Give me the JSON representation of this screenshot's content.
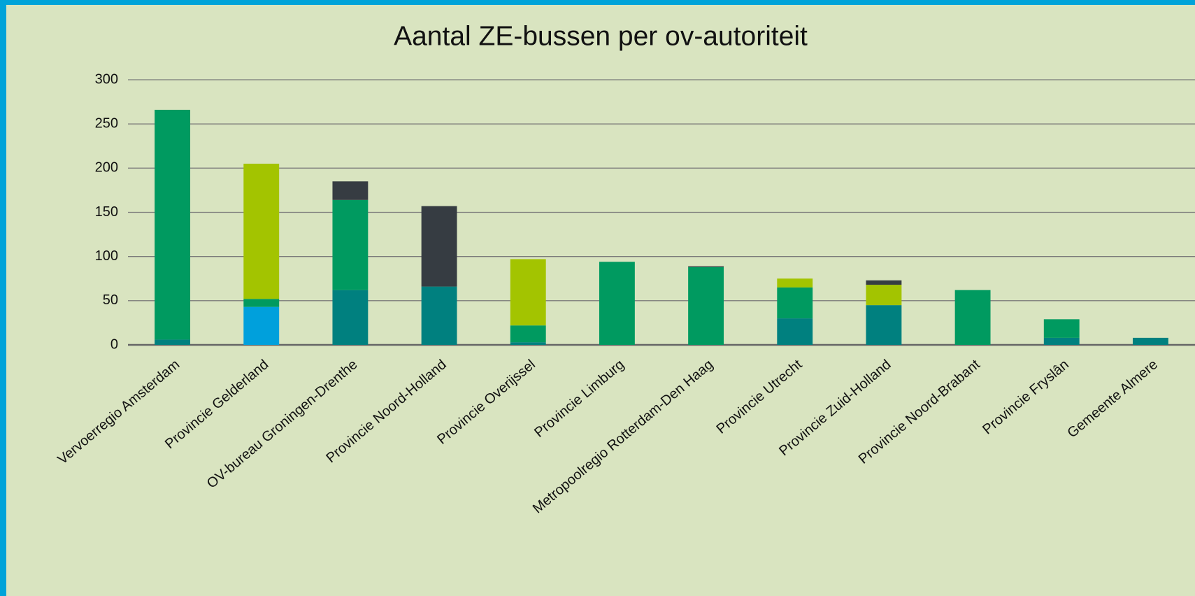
{
  "chart_data": {
    "type": "stacked_bar",
    "title": "Aantal ZE-bussen per ov-autoriteit",
    "categories": [
      "Vervoerregio Amsterdam",
      "Provincie Gelderland",
      "OV-bureau Groningen-Drenthe",
      "Provincie Noord-Holland",
      "Provincie Overijssel",
      "Provincie Limburg",
      "Metropoolregio Rotterdam-Den Haag",
      "Provincie Utrecht",
      "Provincie Zuid-Holland",
      "Provincie Noord-Brabant",
      "Provincie Fryslân",
      "Gemeente Almere"
    ],
    "series": [
      {
        "color": "#00807f",
        "values": [
          6,
          0,
          62,
          66,
          3,
          0,
          0,
          30,
          45,
          0,
          8,
          8
        ]
      },
      {
        "color": "#00a0dc",
        "values": [
          0,
          43,
          0,
          0,
          0,
          0,
          0,
          0,
          0,
          0,
          0,
          0
        ]
      },
      {
        "color": "#009a60",
        "values": [
          260,
          9,
          102,
          0,
          19,
          94,
          88,
          35,
          0,
          62,
          21,
          0
        ]
      },
      {
        "color": "#a3c400",
        "values": [
          0,
          153,
          0,
          0,
          75,
          0,
          0,
          10,
          23,
          0,
          0,
          0
        ]
      },
      {
        "color": "#363c42",
        "values": [
          0,
          0,
          21,
          91,
          0,
          0,
          1,
          0,
          5,
          0,
          0,
          0
        ]
      }
    ],
    "ylim": [
      0,
      300
    ],
    "yticks": [
      0,
      50,
      100,
      150,
      200,
      250,
      300
    ],
    "grid": true
  }
}
